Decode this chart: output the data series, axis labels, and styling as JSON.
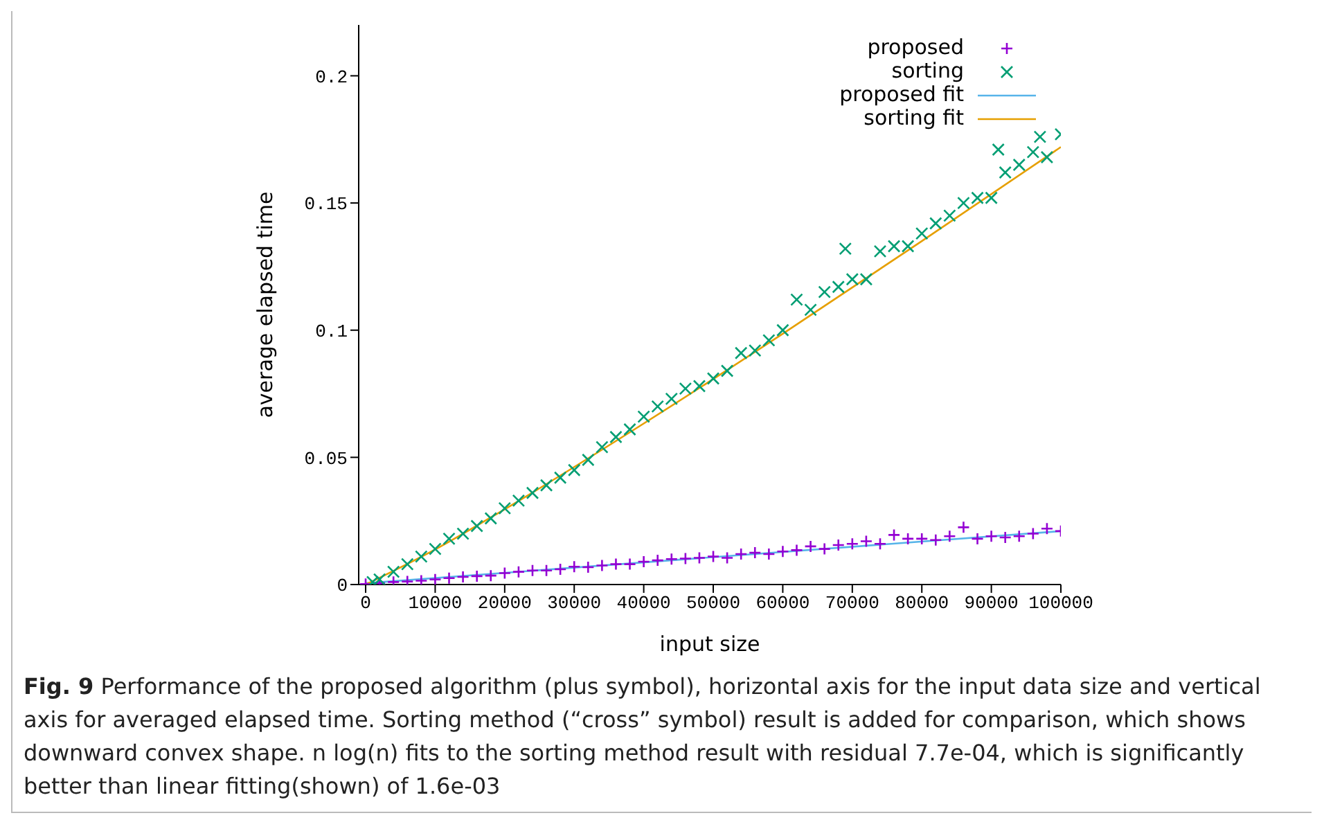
{
  "chart_data": {
    "type": "scatter",
    "xlabel": "input size",
    "ylabel": "average elapsed time",
    "xlim": [
      -1000,
      100000
    ],
    "xticks": [
      0,
      10000,
      20000,
      30000,
      40000,
      50000,
      60000,
      70000,
      80000,
      90000,
      100000
    ],
    "ylim": [
      0,
      0.22
    ],
    "yticks": [
      0,
      0.05,
      0.1,
      0.15,
      0.2
    ],
    "grid": false,
    "legend": "top right",
    "series": [
      {
        "name": "proposed",
        "type": "scatter",
        "marker": "plus",
        "color": "#9400d3",
        "x": [
          0,
          2000,
          4000,
          6000,
          8000,
          10000,
          12000,
          14000,
          16000,
          18000,
          20000,
          22000,
          24000,
          26000,
          28000,
          30000,
          32000,
          34000,
          36000,
          38000,
          40000,
          42000,
          44000,
          46000,
          48000,
          50000,
          52000,
          54000,
          56000,
          58000,
          60000,
          62000,
          64000,
          66000,
          68000,
          70000,
          72000,
          74000,
          76000,
          78000,
          80000,
          82000,
          84000,
          86000,
          88000,
          90000,
          92000,
          94000,
          96000,
          98000,
          100000
        ],
        "values": [
          0.0002,
          0.0005,
          0.001,
          0.0012,
          0.0015,
          0.002,
          0.0025,
          0.003,
          0.0033,
          0.0035,
          0.0045,
          0.005,
          0.0055,
          0.0055,
          0.006,
          0.007,
          0.0068,
          0.0075,
          0.008,
          0.008,
          0.009,
          0.0095,
          0.01,
          0.0102,
          0.0105,
          0.011,
          0.0105,
          0.012,
          0.0125,
          0.012,
          0.013,
          0.0135,
          0.015,
          0.014,
          0.0155,
          0.016,
          0.017,
          0.016,
          0.0195,
          0.018,
          0.018,
          0.0175,
          0.019,
          0.0225,
          0.018,
          0.019,
          0.0185,
          0.019,
          0.02,
          0.022,
          0.021
        ]
      },
      {
        "name": "sorting",
        "type": "scatter",
        "marker": "cross",
        "color": "#009e73",
        "x": [
          1000,
          2000,
          4000,
          6000,
          8000,
          10000,
          12000,
          14000,
          16000,
          18000,
          20000,
          22000,
          24000,
          26000,
          28000,
          30000,
          32000,
          34000,
          36000,
          38000,
          40000,
          42000,
          44000,
          46000,
          48000,
          50000,
          52000,
          54000,
          56000,
          58000,
          60000,
          62000,
          64000,
          66000,
          68000,
          69000,
          70000,
          72000,
          74000,
          76000,
          78000,
          80000,
          82000,
          84000,
          86000,
          88000,
          90000,
          91000,
          92000,
          94000,
          96000,
          97000,
          98000,
          100000
        ],
        "values": [
          0.001,
          0.002,
          0.005,
          0.008,
          0.011,
          0.014,
          0.018,
          0.02,
          0.023,
          0.026,
          0.03,
          0.033,
          0.036,
          0.039,
          0.042,
          0.045,
          0.049,
          0.054,
          0.058,
          0.061,
          0.066,
          0.07,
          0.073,
          0.077,
          0.078,
          0.081,
          0.084,
          0.091,
          0.092,
          0.096,
          0.1,
          0.112,
          0.108,
          0.115,
          0.117,
          0.132,
          0.12,
          0.12,
          0.131,
          0.133,
          0.133,
          0.138,
          0.142,
          0.145,
          0.15,
          0.152,
          0.152,
          0.171,
          0.162,
          0.165,
          0.17,
          0.176,
          0.168,
          0.177
        ]
      },
      {
        "name": "proposed fit",
        "type": "line",
        "color": "#56b4e9",
        "x": [
          0,
          100000
        ],
        "values": [
          0.0005,
          0.021
        ]
      },
      {
        "name": "sorting fit",
        "type": "line",
        "color": "#e69f00",
        "x": [
          0,
          10000,
          20000,
          40000,
          60000,
          80000,
          100000
        ],
        "values": [
          0,
          0.0138,
          0.0296,
          0.0633,
          0.0986,
          0.135,
          0.172
        ]
      }
    ],
    "annotations": [
      "Fig. 9",
      "Performance of the proposed algorithm (plus symbol), horizontal axis for the input data size and vertical axis for averaged elapsed time. Sorting method (“cross” symbol) result is added for comparison, which shows downward convex shape. n log(n) fits to the sorting method result with residual 7.7e-04, which is significantly better than linear fitting(shown) of 1.6e-03"
    ]
  }
}
